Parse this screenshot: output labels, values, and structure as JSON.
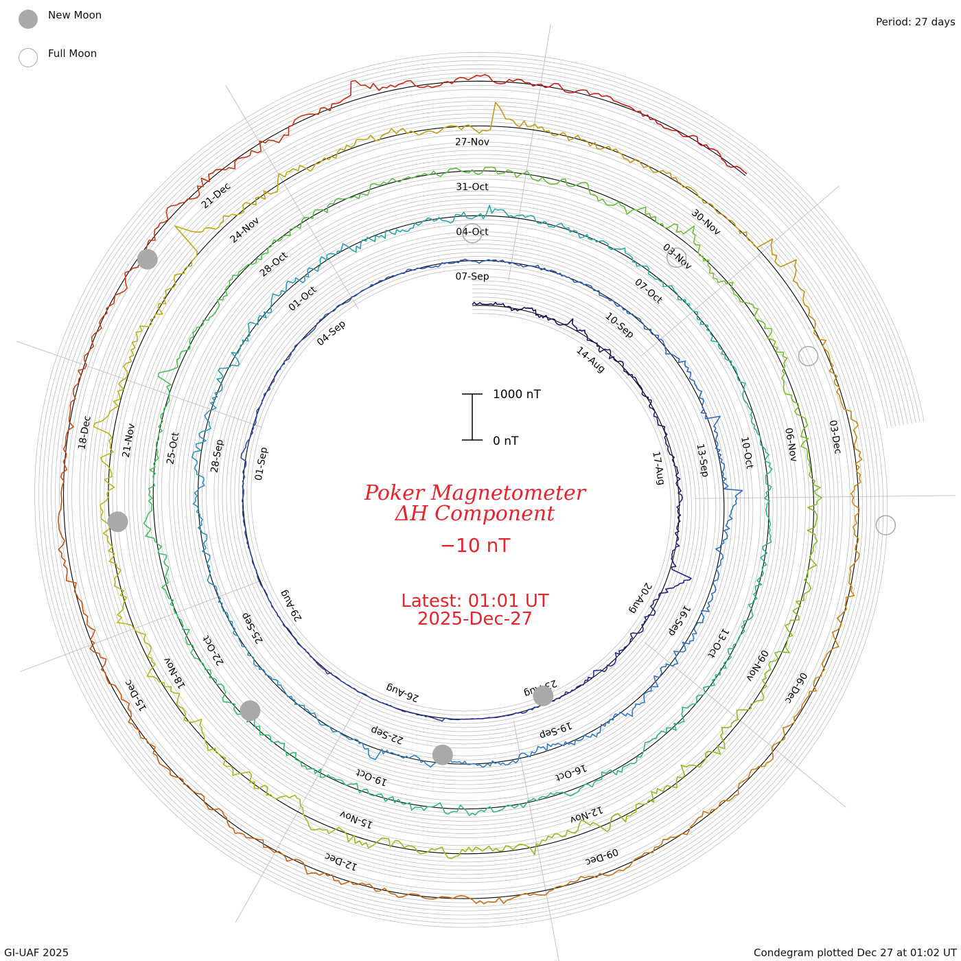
{
  "legend": {
    "new_moon_label": "New Moon",
    "full_moon_label": "Full Moon"
  },
  "period_label": "Period: 27 days",
  "footer": {
    "credit": "GI-UAF 2025",
    "plotted": "Condegram plotted Dec 27 at 01:02 UT"
  },
  "title": {
    "line1": "Poker Magnetometer",
    "line2": "ΔH Component",
    "baseline": "−10 nT",
    "latest_time": "Latest: 01:01 UT",
    "latest_date": "2025-Dec-27"
  },
  "colors": {
    "title": "#e8232c",
    "grid": "#bfbfbf",
    "baseline": "#000000",
    "moon": "#a9a9a9"
  },
  "chart_data": {
    "type": "line",
    "chart_kind": "condegram spiral",
    "period_days": 27,
    "title": "Poker Magnetometer ΔH Component",
    "baseline_nT": -10,
    "scale_bar": {
      "top_label": "1000 nT",
      "bottom_label": "0 nT",
      "top_value": 1000,
      "bottom_value": 0
    },
    "start_date": "2025-08-11",
    "end_date": "2025-12-27",
    "date_labels": [
      {
        "label": "14-Aug",
        "day": 3
      },
      {
        "label": "17-Aug",
        "day": 6
      },
      {
        "label": "20-Aug",
        "day": 9
      },
      {
        "label": "23-Aug",
        "day": 12
      },
      {
        "label": "26-Aug",
        "day": 15
      },
      {
        "label": "29-Aug",
        "day": 18
      },
      {
        "label": "01-Sep",
        "day": 21
      },
      {
        "label": "04-Sep",
        "day": 24
      },
      {
        "label": "07-Sep",
        "day": 27
      },
      {
        "label": "10-Sep",
        "day": 30
      },
      {
        "label": "13-Sep",
        "day": 33
      },
      {
        "label": "16-Sep",
        "day": 36
      },
      {
        "label": "19-Sep",
        "day": 39
      },
      {
        "label": "22-Sep",
        "day": 42
      },
      {
        "label": "25-Sep",
        "day": 45
      },
      {
        "label": "28-Sep",
        "day": 48
      },
      {
        "label": "01-Oct",
        "day": 51
      },
      {
        "label": "04-Oct",
        "day": 54
      },
      {
        "label": "07-Oct",
        "day": 57
      },
      {
        "label": "10-Oct",
        "day": 60
      },
      {
        "label": "13-Oct",
        "day": 63
      },
      {
        "label": "16-Oct",
        "day": 66
      },
      {
        "label": "19-Oct",
        "day": 69
      },
      {
        "label": "22-Oct",
        "day": 72
      },
      {
        "label": "25-Oct",
        "day": 75
      },
      {
        "label": "28-Oct",
        "day": 78
      },
      {
        "label": "31-Oct",
        "day": 81
      },
      {
        "label": "03-Nov",
        "day": 84
      },
      {
        "label": "06-Nov",
        "day": 87
      },
      {
        "label": "09-Nov",
        "day": 90
      },
      {
        "label": "12-Nov",
        "day": 93
      },
      {
        "label": "15-Nov",
        "day": 96
      },
      {
        "label": "18-Nov",
        "day": 99
      },
      {
        "label": "21-Nov",
        "day": 102
      },
      {
        "label": "24-Nov",
        "day": 105
      },
      {
        "label": "27-Nov",
        "day": 108
      },
      {
        "label": "30-Nov",
        "day": 111
      },
      {
        "label": "03-Dec",
        "day": 114
      },
      {
        "label": "06-Dec",
        "day": 117
      },
      {
        "label": "09-Dec",
        "day": 120
      },
      {
        "label": "12-Dec",
        "day": 123
      },
      {
        "label": "15-Dec",
        "day": 126
      },
      {
        "label": "18-Dec",
        "day": 129
      },
      {
        "label": "21-Dec",
        "day": 132
      }
    ],
    "new_moons": [
      "2025-08-23",
      "2025-09-21",
      "2025-10-21",
      "2025-11-20",
      "2025-12-20"
    ],
    "full_moons": [
      "2025-09-07",
      "2025-10-07",
      "2025-11-05",
      "2025-12-04"
    ],
    "activity_nT": [
      {
        "date": "2025-08-11",
        "level": 140
      },
      {
        "date": "2025-08-13",
        "level": 180
      },
      {
        "date": "2025-08-18",
        "level": 120
      },
      {
        "date": "2025-08-20",
        "level": 220
      },
      {
        "date": "2025-08-24",
        "level": 30
      },
      {
        "date": "2025-08-30",
        "level": 40
      },
      {
        "date": "2025-09-10",
        "level": 110
      },
      {
        "date": "2025-09-14",
        "level": 180
      },
      {
        "date": "2025-09-16",
        "level": 260
      },
      {
        "date": "2025-09-25",
        "level": 120
      },
      {
        "date": "2025-09-30",
        "level": 320
      },
      {
        "date": "2025-10-03",
        "level": 250
      },
      {
        "date": "2025-10-07",
        "level": 140
      },
      {
        "date": "2025-10-13",
        "level": 220
      },
      {
        "date": "2025-10-19",
        "level": 240
      },
      {
        "date": "2025-10-28",
        "level": 180
      },
      {
        "date": "2025-11-03",
        "level": 260
      },
      {
        "date": "2025-11-12",
        "level": 360
      },
      {
        "date": "2025-11-24",
        "level": 300
      },
      {
        "date": "2025-11-30",
        "level": 180
      },
      {
        "date": "2025-12-03",
        "level": 260
      },
      {
        "date": "2025-12-06",
        "level": 200
      },
      {
        "date": "2025-12-09",
        "level": 150
      },
      {
        "date": "2025-12-12",
        "level": 220
      },
      {
        "date": "2025-12-18",
        "level": 180
      },
      {
        "date": "2025-12-21",
        "level": 320
      },
      {
        "date": "2025-12-27",
        "level": 140
      }
    ]
  }
}
